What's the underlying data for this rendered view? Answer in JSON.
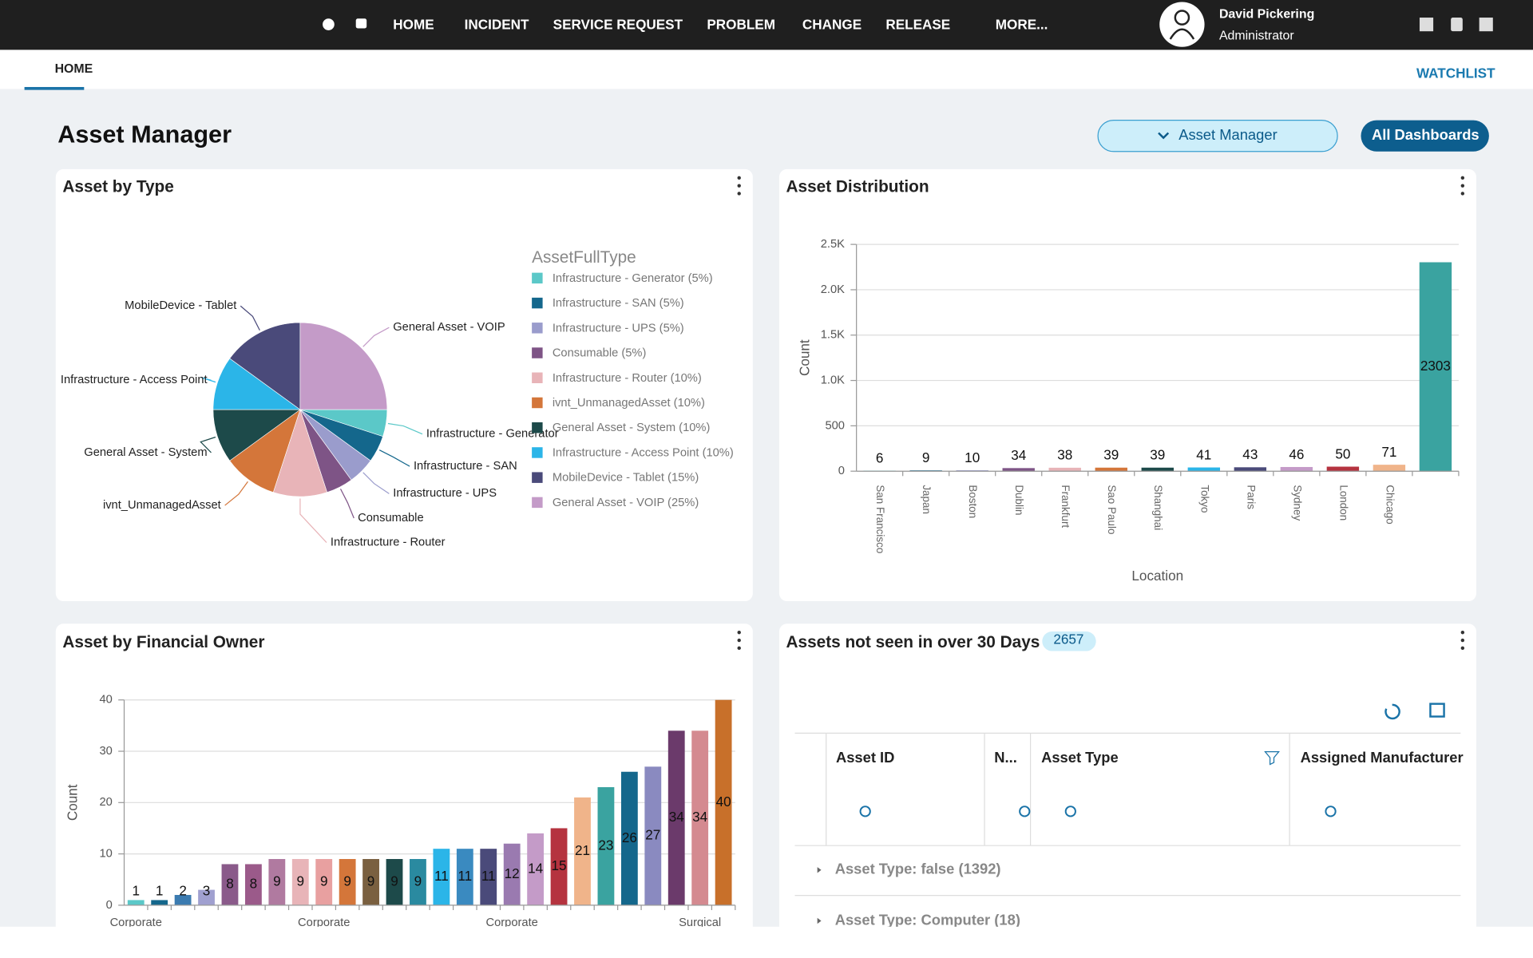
{
  "nav": {
    "items": [
      "HOME",
      "INCIDENT",
      "SERVICE REQUEST",
      "PROBLEM",
      "CHANGE",
      "RELEASE",
      "MORE..."
    ],
    "user_name": "David Pickering",
    "user_role": "Administrator"
  },
  "tabs": {
    "active": "HOME",
    "watchlist": "WATCHLIST"
  },
  "header": {
    "title": "Asset Manager",
    "dashboard_select": "Asset Manager",
    "all_dashboards": "All Dashboards"
  },
  "chart_data": [
    {
      "type": "pie",
      "title": "Asset by Type",
      "legend_title": "AssetFullType",
      "categories": [
        "Infrastructure - Generator",
        "Infrastructure - SAN",
        "Infrastructure - UPS",
        "Consumable",
        "Infrastructure - Router",
        "ivnt_UnmanagedAsset",
        "General Asset - System",
        "Infrastructure - Access Point",
        "MobileDevice - Tablet",
        "General Asset - VOIP"
      ],
      "values": [
        5,
        5,
        5,
        5,
        10,
        10,
        10,
        10,
        15,
        25
      ],
      "value_labels": [
        "Infrastructure - Generator (5%)",
        "Infrastructure - SAN (5%)",
        "Infrastructure - UPS (5%)",
        "Consumable (5%)",
        "Infrastructure - Router (10%)",
        "ivnt_UnmanagedAsset (10%)",
        "General Asset - System (10%)",
        "Infrastructure - Access Point (10%)",
        "MobileDevice - Tablet (15%)",
        "General Asset - VOIP (25%)"
      ],
      "colors": [
        "#5bc8c8",
        "#14678c",
        "#9a9ccc",
        "#7e5486",
        "#e8b4b8",
        "#d4763a",
        "#1d4a4a",
        "#2bb5e8",
        "#4a4a7a",
        "#c49bc8"
      ]
    },
    {
      "type": "bar",
      "title": "Asset Distribution",
      "x_label": "Location",
      "y_label": "Count",
      "categories": [
        "San Francisco",
        "Japan",
        "Boston",
        "Dublin",
        "Frankfurt",
        "Sao Paulo",
        "Shanghai",
        "Tokyo",
        "Paris",
        "Sydney",
        "London",
        "Chicago",
        null
      ],
      "values": [
        6,
        9,
        10,
        34,
        38,
        39,
        39,
        41,
        43,
        46,
        50,
        71,
        2303
      ],
      "colors": [
        "#5bc8c8",
        "#14678c",
        "#9a9ccc",
        "#7e5486",
        "#e8b4b8",
        "#d4763a",
        "#1d4a4a",
        "#2bb5e8",
        "#4a4a7a",
        "#c49bc8",
        "#b5333f",
        "#f0b48a",
        "#3aa3a0"
      ],
      "ylim": [
        0,
        2500
      ],
      "yticks": [
        0,
        500,
        {
          "value": 1000,
          "label": "1.0K"
        },
        {
          "value": 1500,
          "label": "1.5K"
        },
        {
          "value": 2000,
          "label": "2.0K"
        },
        {
          "value": 2500,
          "label": "2.5K"
        }
      ],
      "grid": true
    },
    {
      "type": "bar",
      "title": "Asset by Financial Owner",
      "y_label": "Count",
      "categories": [
        "Corporate",
        null,
        null,
        null,
        null,
        null,
        null,
        null,
        "Corporate",
        null,
        null,
        null,
        null,
        null,
        null,
        null,
        "Corporate",
        null,
        null,
        null,
        null,
        null,
        null,
        null,
        "Surgical",
        null
      ],
      "values": [
        1,
        1,
        2,
        3,
        8,
        8,
        9,
        9,
        9,
        9,
        9,
        9,
        9,
        11,
        11,
        11,
        12,
        14,
        15,
        21,
        23,
        26,
        27,
        34,
        34,
        40
      ],
      "colors": [
        "#5bc8c8",
        "#14678c",
        "#3b7bb0",
        "#a0a0d0",
        "#8a5a8a",
        "#9b5a8a",
        "#b07aa0",
        "#e8b4b8",
        "#e8a0a0",
        "#d4763a",
        "#7a6040",
        "#1d4a4a",
        "#2a8aa0",
        "#2bb5e8",
        "#3a8ac0",
        "#4a4a7a",
        "#9a7ab0",
        "#c49bc8",
        "#b5333f",
        "#f0b48a",
        "#3aa3a0",
        "#14678c",
        "#8a8ac0",
        "#6b3a6b",
        "#d48a90",
        "#c8702a"
      ],
      "ylim": [
        0,
        40
      ],
      "yticks": [
        0,
        10,
        20,
        30,
        40
      ],
      "grid": true
    }
  ],
  "table": {
    "title": "Assets not seen in over 30 Days",
    "count": 2657,
    "columns": [
      "Asset ID",
      "N...",
      "Asset Type",
      "Assigned Manufacturer"
    ],
    "groups": [
      "Asset Type: false (1392)",
      "Asset Type: Computer (18)"
    ]
  }
}
